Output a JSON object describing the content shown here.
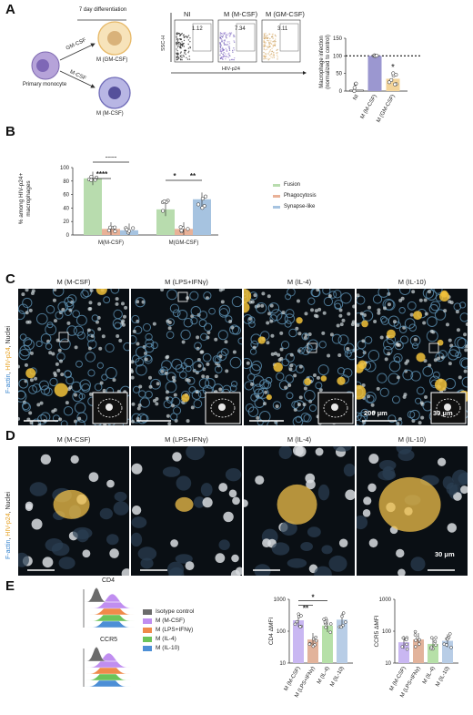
{
  "panels": {
    "a": "A",
    "b": "B",
    "c": "C",
    "d": "D",
    "e": "E"
  },
  "a": {
    "diff_label": "7 day differentiation",
    "gmcsf_arrow": "GM-CSF",
    "mcsf_arrow": "M-CSF",
    "primary": "Primary monocyte",
    "m_gm": "M (GM-CSF)",
    "m_m": "M (M-CSF)",
    "facs": {
      "titles": [
        "NI",
        "M (M-CSF)",
        "M (GM-CSF)"
      ],
      "values": [
        "1.12",
        "7.34",
        "3.11"
      ],
      "yaxis": "SSC-H",
      "xaxis": "HIV-p24"
    },
    "bar": {
      "ylabel": "Macrophage infection (normalized to control)",
      "categories": [
        "NI",
        "M (M-CSF)",
        "M (GM-CSF)"
      ],
      "ticks": [
        "0",
        "50",
        "100",
        "150"
      ],
      "star": "*"
    }
  },
  "b": {
    "ylabel": "% among HIV-p24+ macrophages",
    "ticks": [
      "0",
      "20",
      "40",
      "60",
      "80",
      "100"
    ],
    "groups": [
      "M(M-CSF)",
      "M(GM-CSF)"
    ],
    "sig": [
      "****",
      "****",
      "*",
      "**"
    ],
    "legend": [
      "Fusion",
      "Phagocytosis",
      "Synapse-like"
    ]
  },
  "c": {
    "side": {
      "a": "F-actin",
      "b": "HIV-p24",
      "c": "Nuclei"
    },
    "titles": [
      "M (M-CSF)",
      "M (LPS+IFNγ)",
      "M (IL-4)",
      "M (IL-10)"
    ],
    "scale1": "200 μm",
    "scale2": "30 μm"
  },
  "d": {
    "side": {
      "a": "F-actin",
      "b": "HIV-p24",
      "c": "Nuclei"
    },
    "titles": [
      "M (M-CSF)",
      "M (LPS+IFNγ)",
      "M (IL-4)",
      "M (IL-10)"
    ],
    "scale": "30 μm"
  },
  "e": {
    "cd4": "CD4",
    "ccr5": "CCR5",
    "legend": [
      "Isotype control",
      "M (M-CSF)",
      "M (LPS+IFNγ)",
      "M (IL-4)",
      "M (IL-10)"
    ],
    "cd4_ylabel": "CD4 ΔMFI",
    "ccr5_ylabel": "CCR5 ΔMFI",
    "ticks": [
      "10",
      "100",
      "1000"
    ],
    "categories": [
      "M (M-CSF)",
      "M (LPS+IFNγ)",
      "M (IL-4)",
      "M (IL-10)"
    ],
    "sig": [
      "**",
      "*"
    ]
  },
  "chart_data": [
    {
      "type": "bar",
      "categories": [
        "NI",
        "M (M-CSF)",
        "M (GM-CSF)"
      ],
      "values": [
        3,
        100,
        35
      ],
      "ylabel": "Macrophage infection (normalized to control)",
      "ylim": [
        0,
        150
      ],
      "colors": [
        "#ffffff",
        "#9b97d0",
        "#f3d49a"
      ]
    },
    {
      "type": "bar",
      "categories": [
        "M(M-CSF)",
        "M(GM-CSF)"
      ],
      "ylabel": "% among HIV-p24+ macrophages",
      "ylim": [
        0,
        100
      ],
      "series": [
        {
          "name": "Fusion",
          "values": [
            84,
            38
          ],
          "color": "#b8dcae"
        },
        {
          "name": "Phagocytosis",
          "values": [
            9,
            9
          ],
          "color": "#e9b197"
        },
        {
          "name": "Synapse-like",
          "values": [
            7,
            53
          ],
          "color": "#a6c3e0"
        }
      ]
    },
    {
      "type": "bar",
      "categories": [
        "M (M-CSF)",
        "M (LPS+IFNγ)",
        "M (IL-4)",
        "M (IL-10)"
      ],
      "values": [
        220,
        55,
        150,
        230
      ],
      "ylabel": "CD4 ΔMFI",
      "ylim": [
        10,
        1000
      ],
      "yscale": "log",
      "colors": [
        "#c9b7f2",
        "#e2b39b",
        "#b6e0a8",
        "#b8cde6"
      ]
    },
    {
      "type": "bar",
      "categories": [
        "M (M-CSF)",
        "M (LPS+IFNγ)",
        "M (IL-4)",
        "M (IL-10)"
      ],
      "values": [
        45,
        55,
        40,
        50
      ],
      "ylabel": "CCR5 ΔMFI",
      "ylim": [
        10,
        1000
      ],
      "yscale": "log",
      "colors": [
        "#c9b7f2",
        "#e2b39b",
        "#b6e0a8",
        "#b8cde6"
      ]
    }
  ]
}
